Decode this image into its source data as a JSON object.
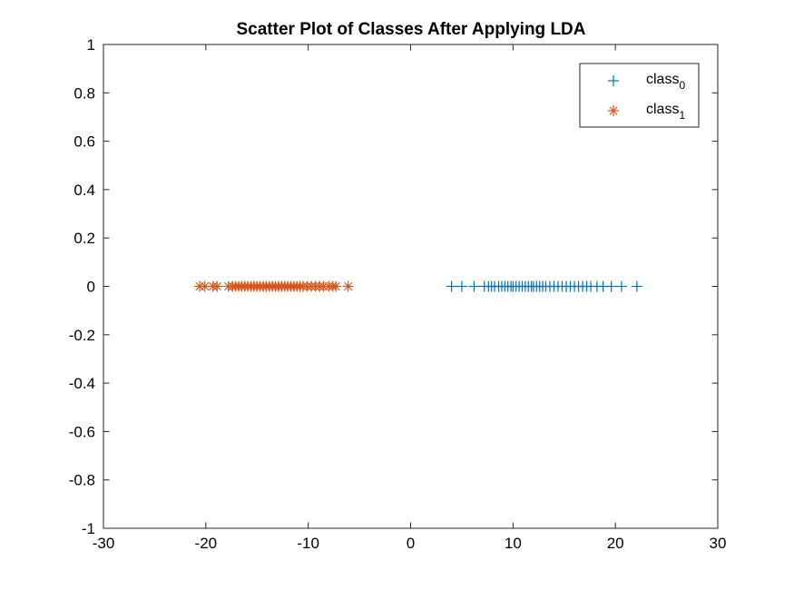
{
  "chart_data": {
    "type": "scatter",
    "title": "Scatter Plot of Classes After Applying LDA",
    "xlabel": "",
    "ylabel": "",
    "xlim": [
      -30,
      30
    ],
    "ylim": [
      -1,
      1
    ],
    "x_ticks": [
      -30,
      -20,
      -10,
      0,
      10,
      20,
      30
    ],
    "y_ticks": [
      -1,
      -0.8,
      -0.6,
      -0.4,
      -0.2,
      0,
      0.2,
      0.4,
      0.6,
      0.8,
      1
    ],
    "x_tick_labels": [
      "-30",
      "-20",
      "-10",
      "0",
      "10",
      "20",
      "30"
    ],
    "y_tick_labels": [
      "-1",
      "-0.8",
      "-0.6",
      "-0.4",
      "-0.2",
      "0",
      "0.2",
      "0.4",
      "0.6",
      "0.8",
      "1"
    ],
    "grid": false,
    "legend_position": "top-right",
    "series": [
      {
        "name": "class",
        "name_subscript": "0",
        "marker": "plus",
        "color": "#0072BD",
        "x": [
          4.0,
          5.0,
          6.2,
          7.2,
          7.6,
          7.9,
          8.2,
          8.6,
          8.9,
          9.2,
          9.5,
          9.8,
          10.0,
          10.3,
          10.6,
          10.9,
          11.2,
          11.5,
          11.8,
          12.0,
          12.3,
          12.6,
          12.9,
          13.2,
          13.6,
          14.0,
          14.4,
          14.8,
          15.2,
          15.6,
          16.0,
          16.4,
          16.8,
          17.2,
          17.6,
          18.2,
          18.8,
          19.6,
          20.6,
          22.1
        ],
        "y": [
          0,
          0,
          0,
          0,
          0,
          0,
          0,
          0,
          0,
          0,
          0,
          0,
          0,
          0,
          0,
          0,
          0,
          0,
          0,
          0,
          0,
          0,
          0,
          0,
          0,
          0,
          0,
          0,
          0,
          0,
          0,
          0,
          0,
          0,
          0,
          0,
          0,
          0,
          0,
          0
        ]
      },
      {
        "name": "class",
        "name_subscript": "1",
        "marker": "asterisk",
        "color": "#D95319",
        "x": [
          -20.6,
          -20.1,
          -19.3,
          -18.9,
          -17.8,
          -17.4,
          -17.1,
          -16.8,
          -16.5,
          -16.2,
          -15.9,
          -15.6,
          -15.3,
          -15.0,
          -14.7,
          -14.4,
          -14.1,
          -13.8,
          -13.5,
          -13.2,
          -12.9,
          -12.6,
          -12.3,
          -12.0,
          -11.7,
          -11.4,
          -11.1,
          -10.8,
          -10.5,
          -10.1,
          -9.7,
          -9.3,
          -8.9,
          -8.5,
          -8.0,
          -7.6,
          -7.3,
          -6.1
        ],
        "y": [
          0,
          0,
          0,
          0,
          0,
          0,
          0,
          0,
          0,
          0,
          0,
          0,
          0,
          0,
          0,
          0,
          0,
          0,
          0,
          0,
          0,
          0,
          0,
          0,
          0,
          0,
          0,
          0,
          0,
          0,
          0,
          0,
          0,
          0,
          0,
          0,
          0,
          0
        ]
      }
    ]
  }
}
